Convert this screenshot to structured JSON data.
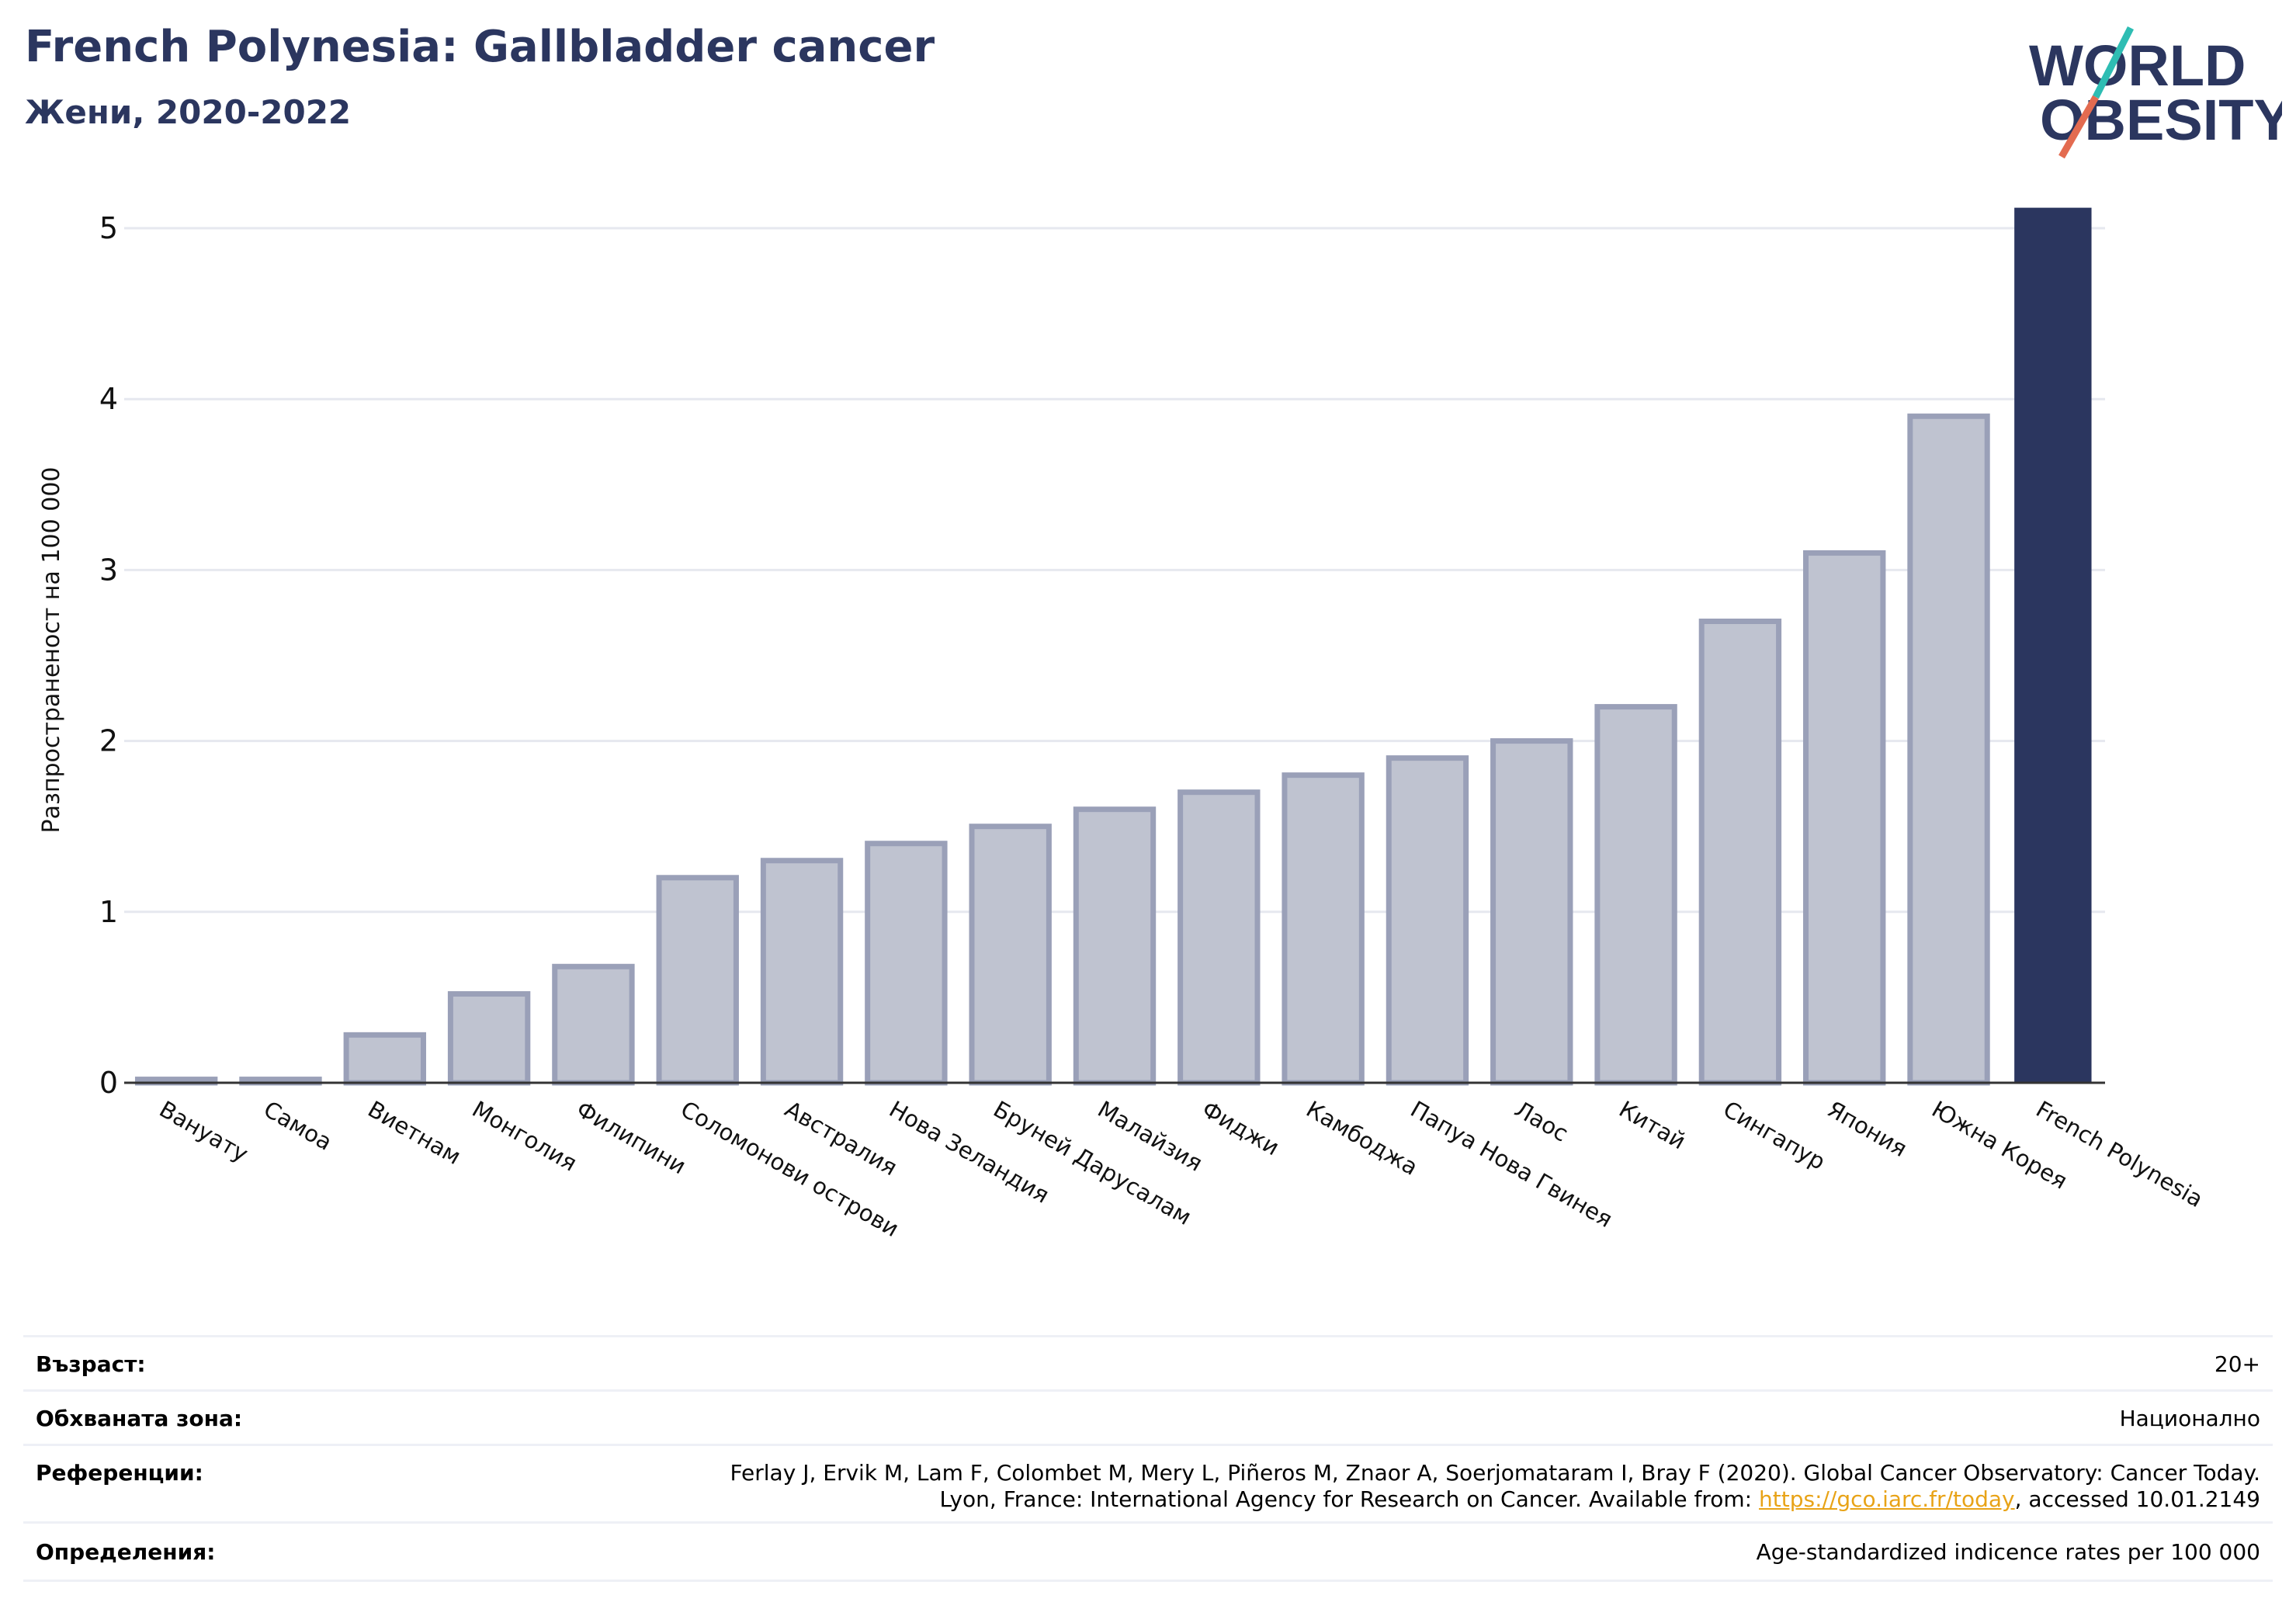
{
  "header": {
    "title": "French Polynesia: Gallbladder cancer",
    "subtitle": "Жени, 2020-2022"
  },
  "logo": {
    "line1": "WORLD",
    "line2": "OBESITY",
    "colors": {
      "text": "#2b365f",
      "slash_top": "#2ebdb3",
      "slash_bottom": "#e36b50"
    }
  },
  "chart_data": {
    "type": "bar",
    "ylabel": "Разпространеност  на 100 000",
    "ylim": [
      0,
      5.2
    ],
    "yticks": [
      0,
      1,
      2,
      3,
      4,
      5
    ],
    "grid": true,
    "categories": [
      "Вануату",
      "Самоа",
      "Виетнам",
      "Монголия",
      "Филипини",
      "Соломонови острови",
      "Австралия",
      "Нова Зеландия",
      "Бруней Дарусалам",
      "Малайзия",
      "Фиджи",
      "Камбоджа",
      "Папуа Нова Гвинея",
      "Лаос",
      "Китай",
      "Сингапур",
      "Япония",
      "Южна Корея",
      "French Polynesia"
    ],
    "values": [
      0.02,
      0.02,
      0.28,
      0.52,
      0.68,
      1.2,
      1.3,
      1.4,
      1.5,
      1.6,
      1.7,
      1.8,
      1.9,
      2.0,
      2.2,
      2.7,
      3.1,
      3.9,
      5.12
    ],
    "highlight": "French Polynesia",
    "colors": {
      "bar": "#bfc3d0",
      "bar_edge": "#9aa0b8",
      "highlight": "#2b365f",
      "grid": "#e6e8ef",
      "axis": "#333333"
    }
  },
  "meta": {
    "age_label": "Възраст:",
    "age_value": "20+",
    "area_label": "Обхваната зона:",
    "area_value": "Национално",
    "refs_label": "Референции:",
    "refs_line1": "Ferlay J, Ervik M, Lam F, Colombet M, Mery L, Piñeros M, Znaor A, Soerjomataram I, Bray F (2020). Global Cancer Observatory: Cancer Today.",
    "refs_line2_pre": "Lyon, France: International Agency for Research on Cancer. Available from: ",
    "refs_link": "https://gco.iarc.fr/today",
    "refs_line2_post": ", accessed 10.01.2149",
    "defs_label": "Определения:",
    "defs_value": "Age-standardized indicence rates per 100 000"
  }
}
